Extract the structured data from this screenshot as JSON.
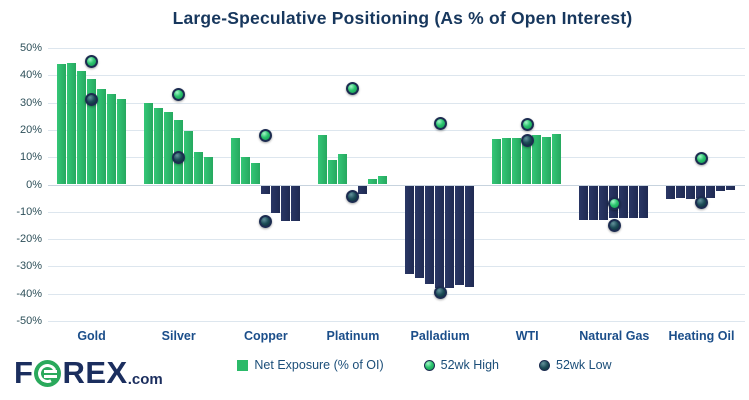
{
  "title": "Large-Speculative Positioning (As % of Open Interest)",
  "axis": {
    "tick_labels": [
      "50%",
      "40%",
      "30%",
      "20%",
      "10%",
      "0%",
      "-10%",
      "-20%",
      "-30%",
      "-40%",
      "-50%"
    ]
  },
  "legend": [
    {
      "label": "Net Exposure (% of OI)",
      "swatch": "green-square"
    },
    {
      "label": "52wk High",
      "swatch": "green-dot"
    },
    {
      "label": "52wk Low",
      "swatch": "dark-dot"
    }
  ],
  "logo": {
    "f": "F",
    "rex": "REX",
    "com": ".com"
  },
  "colors": {
    "bar_positive": "#2BBA69",
    "bar_negative": "#232F5B",
    "high_dot": "#2BC46E",
    "low_dot": "#1C4C57",
    "title_text": "#17375D",
    "category_text": "#1B4E8A",
    "gridline": "#DDE6EE"
  },
  "chart_data": {
    "type": "bar",
    "title": "Large-Speculative Positioning (As % of Open Interest)",
    "xlabel": "",
    "ylabel": "",
    "ylim": [
      -50,
      50
    ],
    "ytick_step": 10,
    "grid": true,
    "legend_position": "bottom",
    "categories": [
      "Gold",
      "Silver",
      "Copper",
      "Platinum",
      "Palladium",
      "WTI",
      "Natural Gas",
      "Heating Oil"
    ],
    "series": [
      {
        "name": "Net Exposure (% of OI)",
        "type": "bar-cluster",
        "values_per_category": [
          [
            44,
            44.5,
            41.5,
            38.5,
            35,
            33,
            31.5
          ],
          [
            30,
            28,
            26.5,
            23.5,
            19.5,
            12,
            10
          ],
          [
            17,
            10,
            8,
            -3,
            -10,
            -13,
            -13
          ],
          [
            18,
            9,
            11,
            0,
            -3,
            2,
            3
          ],
          [
            -32.5,
            -34,
            -36,
            -37.5,
            -37.5,
            -36.5,
            -37
          ],
          [
            16.5,
            17,
            17,
            17,
            18,
            17.5,
            18.5
          ],
          [
            -12.5,
            -12.5,
            -12.5,
            -12,
            -12,
            -12,
            -12
          ],
          [
            -5,
            -4.5,
            -5,
            -4.5,
            -4.5,
            -2,
            -1.5
          ]
        ]
      },
      {
        "name": "52wk High",
        "type": "point",
        "values": [
          45,
          33,
          18,
          35,
          22.5,
          22,
          -7,
          9.5
        ]
      },
      {
        "name": "52wk Low",
        "type": "point",
        "values": [
          31,
          10,
          -13.5,
          -4.5,
          -39.5,
          16,
          -15,
          -6.5
        ]
      }
    ]
  }
}
